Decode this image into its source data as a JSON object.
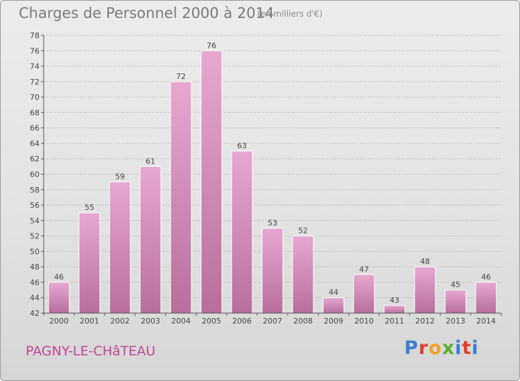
{
  "title": "Charges de Personnel 2000 à 2014",
  "subtitle": "(en milliers d'€)",
  "location": "PAGNY-LE-CHâTEAU",
  "brand": "Proxiti",
  "colors": {
    "bar_light": "#e6a8d0",
    "bar_dark": "#b86e9c",
    "bar_stroke": "#ffffff",
    "grid": "#bdbdbd",
    "axis": "#555555",
    "location_text": "#c0449a"
  },
  "chart_data": {
    "type": "bar",
    "categories": [
      "2000",
      "2001",
      "2002",
      "2003",
      "2004",
      "2005",
      "2006",
      "2007",
      "2008",
      "2009",
      "2010",
      "2011",
      "2012",
      "2013",
      "2014"
    ],
    "values": [
      46,
      55,
      59,
      61,
      72,
      76,
      63,
      53,
      52,
      44,
      47,
      43,
      48,
      45,
      46
    ],
    "ylim": [
      42,
      78
    ],
    "yticks": [
      42,
      44,
      46,
      48,
      50,
      52,
      54,
      56,
      58,
      60,
      62,
      64,
      66,
      68,
      70,
      72,
      74,
      76,
      78
    ],
    "grid": true,
    "data_labels": true
  }
}
